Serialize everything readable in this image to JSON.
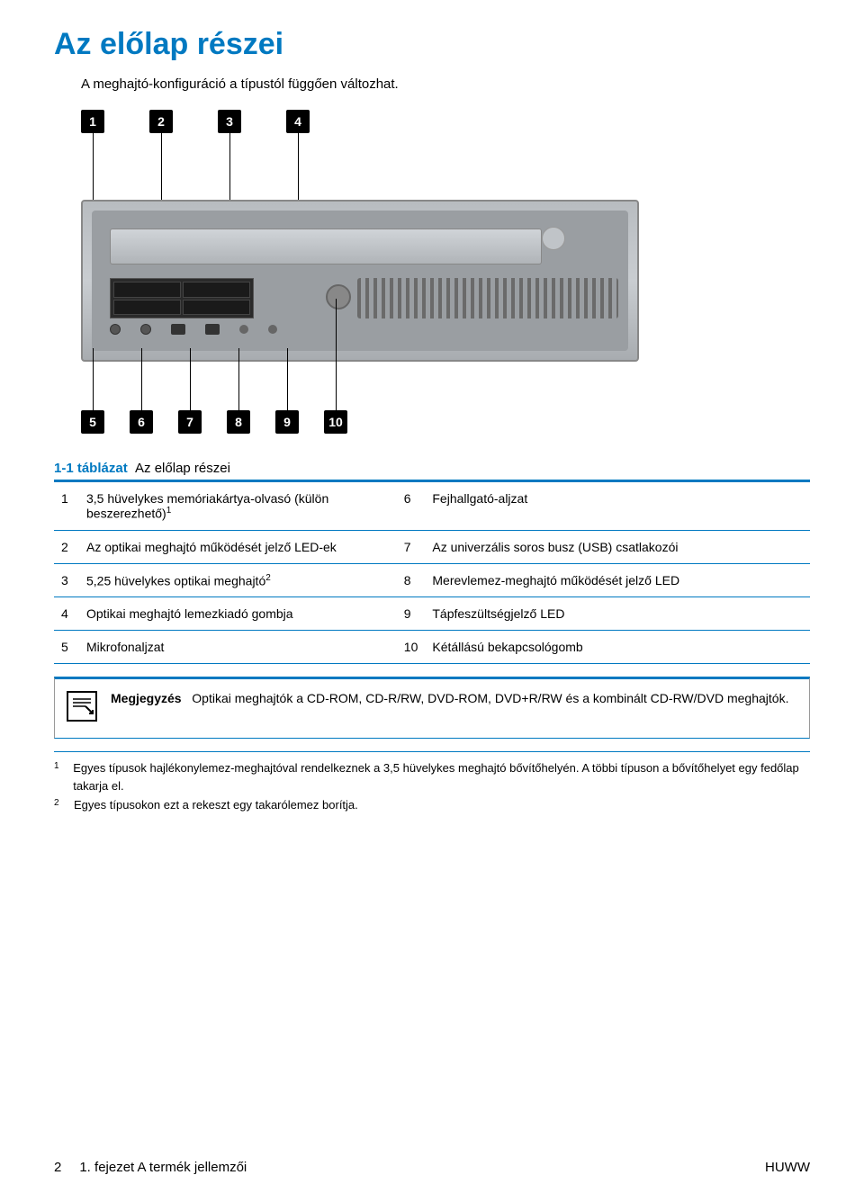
{
  "title": "Az előlap részei",
  "subtitle": "A meghajtó-konfiguráció a típustól függően változhat.",
  "diagram": {
    "top_callouts": [
      "1",
      "2",
      "3",
      "4"
    ],
    "bottom_callouts": [
      "5",
      "6",
      "7",
      "8",
      "9",
      "10"
    ]
  },
  "table": {
    "caption_prefix": "1-1 táblázat",
    "caption_text": "Az előlap részei",
    "rows": [
      {
        "n1": "1",
        "d1": "3,5 hüvelykes memóriakártya-olvasó (külön beszerezhető)",
        "sup1": "1",
        "n2": "6",
        "d2": "Fejhallgató-aljzat"
      },
      {
        "n1": "2",
        "d1": "Az optikai meghajtó működését jelző LED-ek",
        "n2": "7",
        "d2": "Az univerzális soros busz (USB) csatlakozói"
      },
      {
        "n1": "3",
        "d1": "5,25 hüvelykes optikai meghajtó",
        "sup1": "2",
        "n2": "8",
        "d2": "Merevlemez-meghajtó működését jelző LED"
      },
      {
        "n1": "4",
        "d1": "Optikai meghajtó lemezkiadó gombja",
        "n2": "9",
        "d2": "Tápfeszültségjelző LED"
      },
      {
        "n1": "5",
        "d1": "Mikrofonaljzat",
        "n2": "10",
        "d2": "Kétállású bekapcsológomb"
      }
    ]
  },
  "note": {
    "label": "Megjegyzés",
    "text": "Optikai meghajtók a CD-ROM, CD-R/RW, DVD-ROM, DVD+R/RW és a kombinált CD-RW/DVD meghajtók."
  },
  "footnotes": [
    {
      "num": "1",
      "text": "Egyes típusok hajlékonylemez-meghajtóval rendelkeznek a 3,5 hüvelykes meghajtó bővítőhelyén. A többi típuson a bővítőhelyet egy fedőlap takarja el."
    },
    {
      "num": "2",
      "text": "Egyes típusokon ezt a rekeszt egy takarólemez borítja."
    }
  ],
  "footer": {
    "page": "2",
    "chapter": "1. fejezet   A termék jellemzői",
    "lang": "HUWW"
  },
  "colors": {
    "accent": "#0079c1",
    "text": "#000000"
  }
}
